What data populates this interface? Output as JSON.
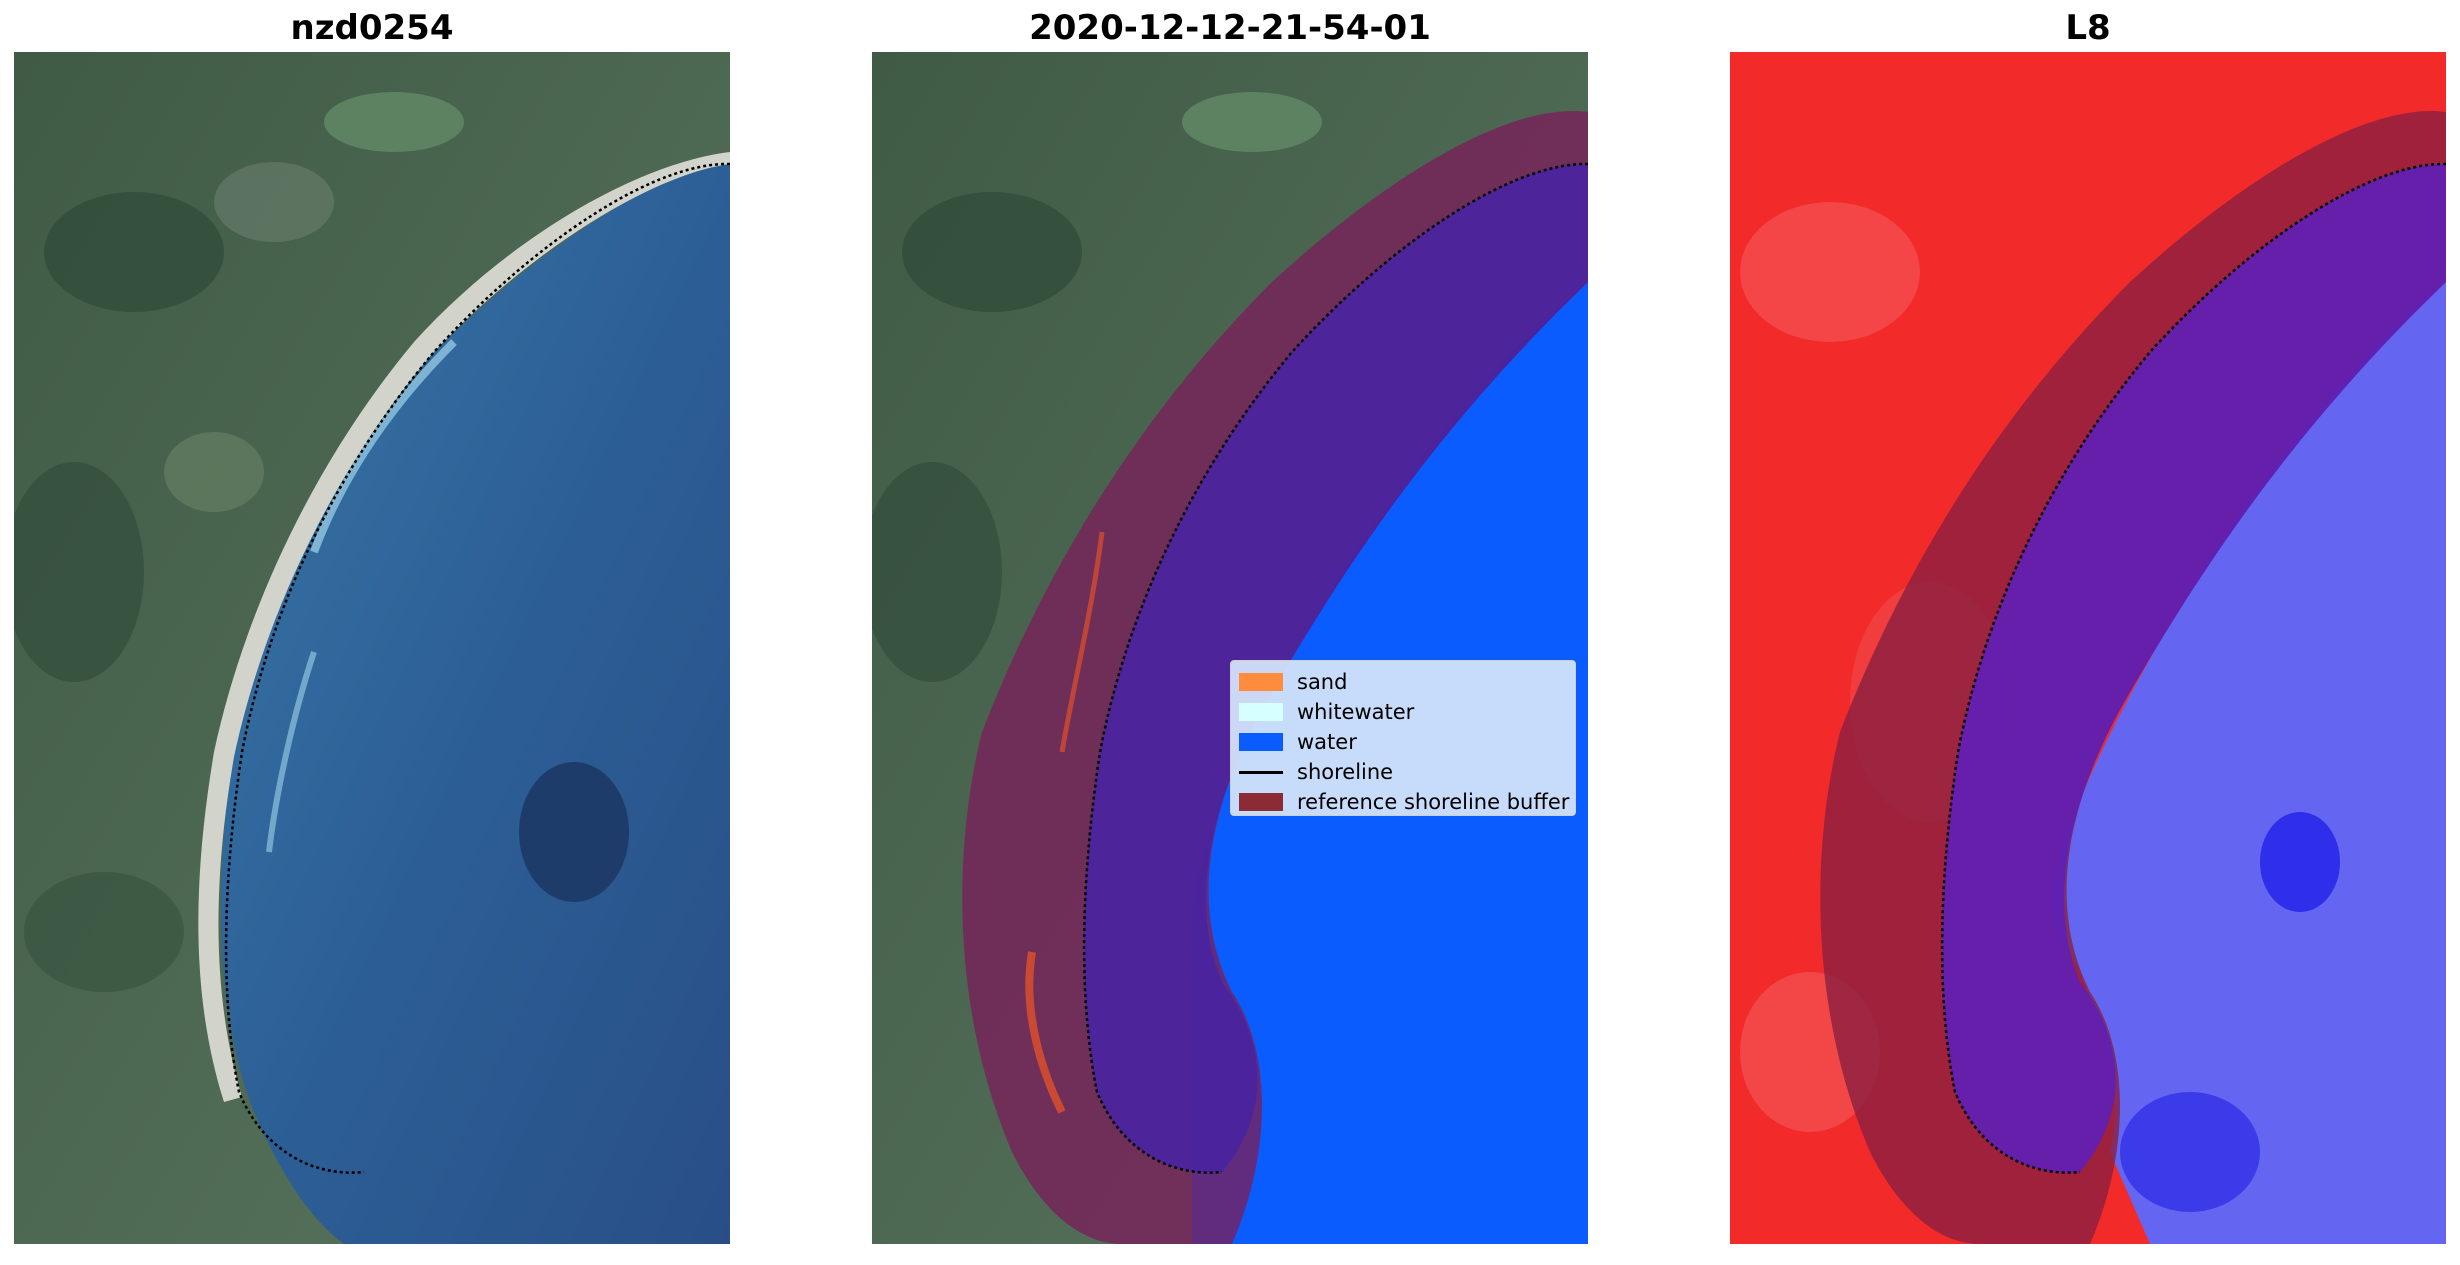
{
  "panels": [
    {
      "title": "nzd0254"
    },
    {
      "title": "2020-12-12-21-54-01"
    },
    {
      "title": "L8"
    }
  ],
  "legend": {
    "items": [
      {
        "label": "sand",
        "color": "#ff8c3c",
        "kind": "patch"
      },
      {
        "label": "whitewater",
        "color": "#d6ffff",
        "kind": "patch"
      },
      {
        "label": "water",
        "color": "#0a5cff",
        "kind": "patch"
      },
      {
        "label": "shoreline",
        "color": "#000000",
        "kind": "line"
      },
      {
        "label": "reference shoreline buffer",
        "color": "#8c2a36",
        "kind": "patch"
      }
    ]
  },
  "colors": {
    "land": "#4e6b4f",
    "ocean_rgb": "#2d5f95",
    "beach": "#c9cbc4",
    "classified_water": "#0a5cff",
    "buffer_overlay": "#8c1f4a",
    "index_land": "#f22a2a",
    "index_water": "#5a5cf0"
  }
}
